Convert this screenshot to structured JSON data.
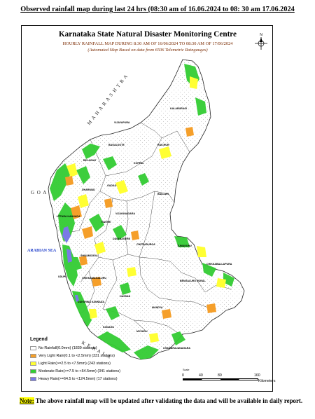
{
  "heading": "Observed rainfall map during last 24 hrs (08:30 am of 16.06.2024 to 08: 30 am 17.06.2024",
  "map": {
    "title": "Karnataka State Natural Disaster Monitoring Centre",
    "subtitle": "HOURLY RAINFALL MAP DURING 8:30 AM OF 16/06/2024 TO 08:30 AM OF 17/06/2024",
    "note": "(Automated Map Based on data from 6506 Telemetric Raingauges)",
    "labels": {
      "maharashtra": "M A H A R A S H T R A",
      "goa": "G O A",
      "arabian_sea": "ARABIAN SEA",
      "kerala": "K E R A L A",
      "kalaburagi": "KALABURAGI",
      "vijayapura": "VIJAYAPURA",
      "bagalkote": "BAGALKOTE",
      "belagavi": "BELAGAVI",
      "raichur": "RAICHUR",
      "koppal": "KOPPAL",
      "gadag": "GADAG",
      "dharwad": "DHARWAD",
      "uttara_kannada": "UTTARA KANNADA",
      "haveri": "HAVERI",
      "ballari": "BALLARI",
      "vijayanagara": "VIJAYANAGARA",
      "davanagere": "DAVANAGERE",
      "chitradurga": "CHITRADURGA",
      "shivamogga": "SHIVAMOGGA",
      "udupi": "UDUPI",
      "chikkamagaluru": "CHIKKAMAGALURU",
      "tumakuru": "TUMAKURU",
      "chikkaballapura": "CHIKKABALLAPURA",
      "dakshina_kannada": "DAKSHINA KANNADA",
      "hassan": "HASSAN",
      "bengaluru_rural": "BENGALURU RURAL",
      "kodagu": "KODAGU",
      "mandya": "MANDYA",
      "mysuru": "MYSURU",
      "chamarajanagara": "CHAMARAJANAGARA"
    },
    "rainfall_classes_colors": [
      "#ffffff",
      "#f59f2a",
      "#ffff33",
      "#33cc33",
      "#7a7ae6"
    ]
  },
  "legend": {
    "title": "Legend",
    "items": [
      {
        "label": "No Rainfall(0.0mm) (1839 stations)",
        "color": "#ffffff"
      },
      {
        "label": "Very Light Rain(0.1 to <2.5mm) (331 stations)",
        "color": "#f59f2a"
      },
      {
        "label": "Light Rain(>=2.5 to <7.5mm) (243 stations)",
        "color": "#ffff33"
      },
      {
        "label": "Moderate Rain(>=7.5 to <64.5mm) (341 stations)",
        "color": "#33cc33"
      },
      {
        "label": "Heavy Rain(>=64.5 to <124.5mm) (17 stations)",
        "color": "#7a7ae6"
      }
    ]
  },
  "scale": {
    "title": "Scale",
    "ticks": [
      "0",
      "40",
      "80",
      "160"
    ],
    "unit": "Kilometers"
  },
  "footer": {
    "note_label": "Note:",
    "note_text": " The above rainfall map will be updated after validating the data and will be available in daily report."
  }
}
